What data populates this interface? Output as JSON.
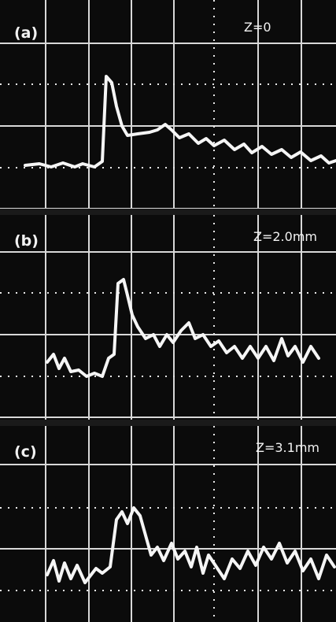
{
  "panels": [
    {
      "label": "(a)",
      "z": "Z=0"
    },
    {
      "label": "(b)",
      "z": "Z=2.0mm"
    },
    {
      "label": "(c)",
      "z": "Z=3.1mm"
    }
  ]
}
